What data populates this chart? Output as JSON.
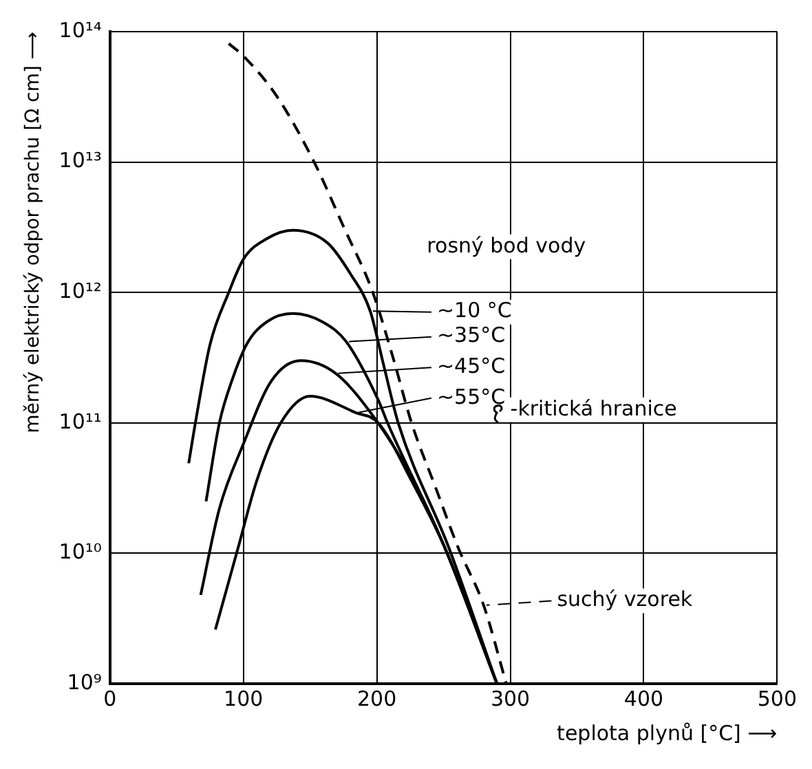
{
  "chart_data": {
    "type": "line",
    "xlabel": "teplota plynů [°C] ⟶",
    "ylabel": "měrný elektrický odpor prachu [Ω cm] ⟶",
    "xlim": [
      0,
      500
    ],
    "xticks": [
      0,
      100,
      200,
      300,
      400,
      500
    ],
    "ylim": [
      1000000000.0,
      100000000000000.0
    ],
    "yticks": [
      {
        "value": 1000000000.0,
        "label": "10⁹"
      },
      {
        "value": 10000000000.0,
        "label": "10¹⁰"
      },
      {
        "value": 100000000000.0,
        "label": "10¹¹"
      },
      {
        "value": 1000000000000.0,
        "label": "10¹²"
      },
      {
        "value": 10000000000000.0,
        "label": "10¹³"
      },
      {
        "value": 100000000000000.0,
        "label": "10¹⁴"
      }
    ],
    "log": "y",
    "grid": true,
    "legend": "right",
    "marker": "none",
    "annotations": [
      "rosný bod vody",
      "-kritická hranice"
    ],
    "series": [
      {
        "name": "~10 °C",
        "color": "#000000",
        "line_style": "solid",
        "x": [
          59,
          64,
          75,
          89,
          100,
          118,
          137,
          163,
          180,
          195,
          205,
          216,
          254,
          290
        ],
        "values": [
          49000000000.0,
          100000000000.0,
          400000000000.0,
          1000000000000.0,
          1800000000000.0,
          2600000000000.0,
          3000000000000.0,
          2400000000000.0,
          1400000000000.0,
          720000000000.0,
          280000000000.0,
          100000000000.0,
          11000000000.0,
          1000000000.0
        ]
      },
      {
        "name": "~35°C",
        "color": "#000000",
        "line_style": "solid",
        "x": [
          72,
          82,
          92,
          103,
          118,
          137,
          160,
          177,
          201,
          208,
          251,
          290
        ],
        "values": [
          25000000000.0,
          100000000000.0,
          220000000000.0,
          410000000000.0,
          600000000000.0,
          690000000000.0,
          590000000000.0,
          420000000000.0,
          150000000000.0,
          100000000000.0,
          11000000000.0,
          1000000000.0
        ]
      },
      {
        "name": "~45°C",
        "color": "#000000",
        "line_style": "solid",
        "x": [
          68,
          82,
          100,
          121,
          143,
          169,
          198,
          225,
          251,
          290
        ],
        "values": [
          4800000000.0,
          22000000000.0,
          69000000000.0,
          210000000000.0,
          300000000000.0,
          240000000000.0,
          110000000000.0,
          40000000000.0,
          11000000000.0,
          1000000000.0
        ]
      },
      {
        "name": "~55°C",
        "color": "#000000",
        "line_style": "solid",
        "x": [
          79,
          96,
          110,
          128,
          150,
          184,
          201,
          226,
          251,
          290
        ],
        "values": [
          2600000000.0,
          11000000000.0,
          36000000000.0,
          100000000000.0,
          160000000000.0,
          120000000000.0,
          100000000000.0,
          36000000000.0,
          11000000000.0,
          1000000000.0
        ]
      },
      {
        "name": "suchý vzorek",
        "color": "#000000",
        "line_style": "dashed",
        "x": [
          89,
          100,
          125,
          153,
          175,
          197,
          212,
          226,
          244,
          261,
          280,
          297
        ],
        "values": [
          81000000000000.0,
          65000000000000.0,
          32000000000000.0,
          10000000000000.0,
          3200000000000.0,
          1000000000000.0,
          320000000000.0,
          100000000000.0,
          32000000000.0,
          11000000000.0,
          4000000000.0,
          1000000000.0
        ]
      }
    ]
  }
}
